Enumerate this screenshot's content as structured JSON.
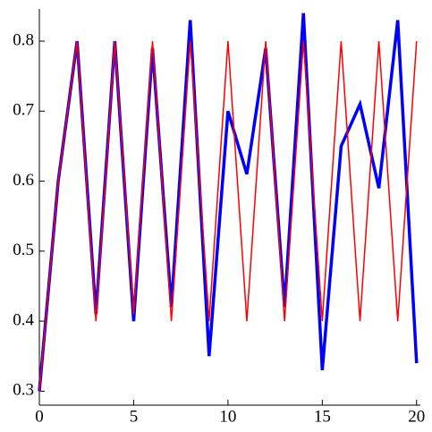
{
  "chart_data": {
    "type": "line",
    "x": [
      0,
      1,
      2,
      3,
      4,
      5,
      6,
      7,
      8,
      9,
      10,
      11,
      12,
      13,
      14,
      15,
      16,
      17,
      18,
      19,
      20
    ],
    "series": [
      {
        "color": "#ff0000",
        "width": 1.5,
        "values": [
          0.3,
          0.6,
          0.8,
          0.4,
          0.8,
          0.41,
          0.8,
          0.4,
          0.8,
          0.4,
          0.8,
          0.4,
          0.8,
          0.4,
          0.8,
          0.4,
          0.8,
          0.4,
          0.8,
          0.4,
          0.8
        ]
      },
      {
        "color": "#0000ff",
        "width": 3.5,
        "values": [
          0.3,
          0.6,
          0.8,
          0.41,
          0.8,
          0.4,
          0.79,
          0.42,
          0.83,
          0.35,
          0.7,
          0.61,
          0.79,
          0.42,
          0.84,
          0.33,
          0.65,
          0.71,
          0.59,
          0.83,
          0.34
        ]
      }
    ],
    "xlim": [
      0,
      20.2
    ],
    "xticks": [
      0,
      5,
      10,
      15,
      20
    ],
    "ylim": [
      0.28,
      0.846
    ],
    "yticks": [
      0.3,
      0.4,
      0.5,
      0.6,
      0.7,
      0.8
    ]
  }
}
